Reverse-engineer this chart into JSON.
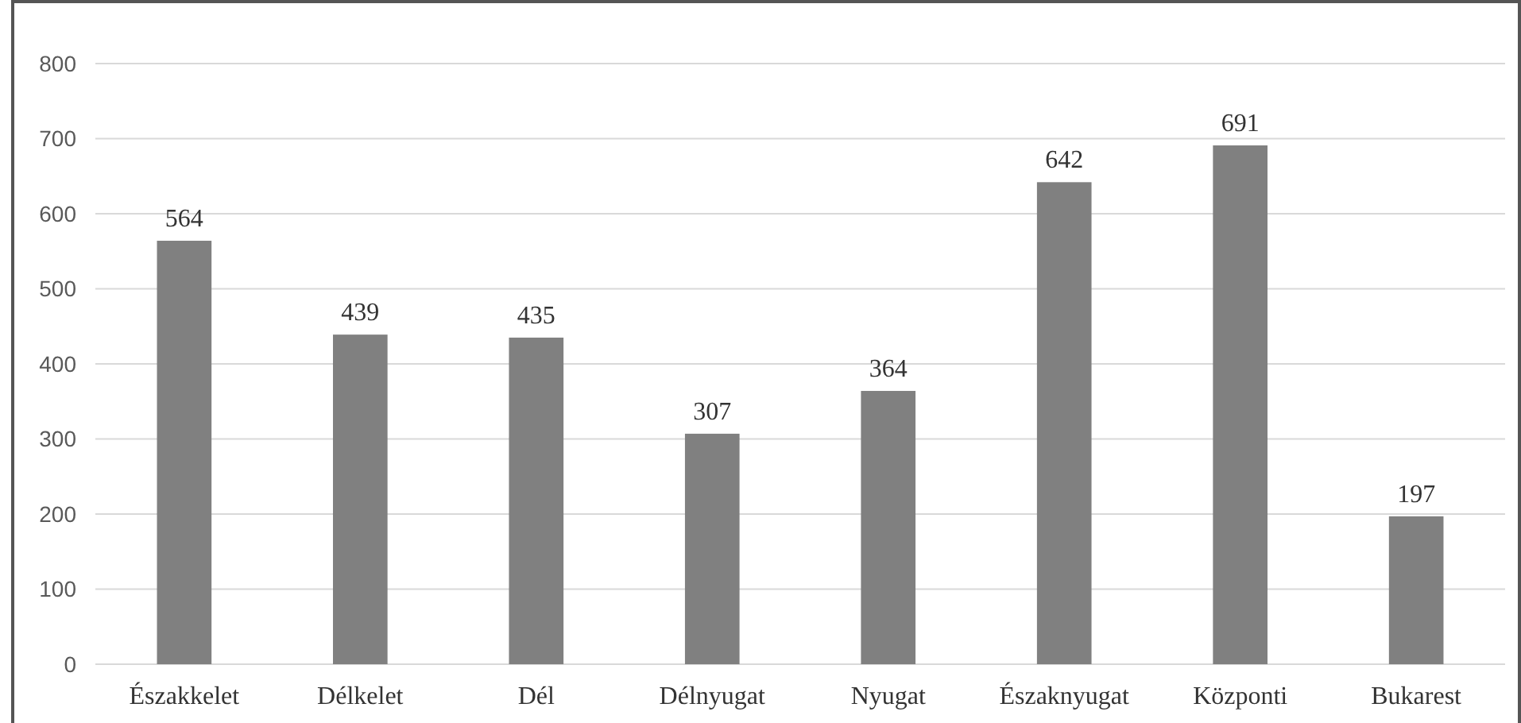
{
  "chart_data": {
    "type": "bar",
    "categories": [
      "Északkelet",
      "Délkelet",
      "Dél",
      "Délnyugat",
      "Nyugat",
      "Északnyugat",
      "Központi",
      "Bukarest"
    ],
    "values": [
      564,
      439,
      435,
      307,
      364,
      642,
      691,
      197
    ],
    "color": "#808080",
    "data_labels": true,
    "ylim": [
      0,
      800
    ],
    "yticks": [
      0,
      100,
      200,
      300,
      400,
      500,
      600,
      700,
      800
    ],
    "grid": "y"
  }
}
